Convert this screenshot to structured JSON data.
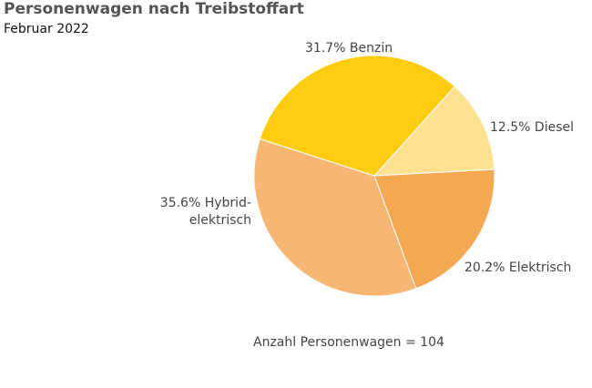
{
  "chart_data": {
    "type": "pie",
    "title": "Personenwagen nach Treibstoffart",
    "subtitle": "Februar 2022",
    "slices": [
      {
        "label": "Diesel",
        "value": 12.5,
        "display": "12.5% Diesel",
        "color": "#FDE090"
      },
      {
        "label": "Elektrisch",
        "value": 20.2,
        "display": "20.2% Elektrisch",
        "color": "#F5A852"
      },
      {
        "label": "Hybrid-elektrisch",
        "value": 35.6,
        "display_lines": [
          "35.6% Hybrid-",
          "elektrisch"
        ],
        "color": "#F7B674"
      },
      {
        "label": "Benzin",
        "value": 31.7,
        "display": "31.7% Benzin",
        "color": "#FECC0F"
      }
    ],
    "note": "Anzahl Personenwagen = 104"
  }
}
